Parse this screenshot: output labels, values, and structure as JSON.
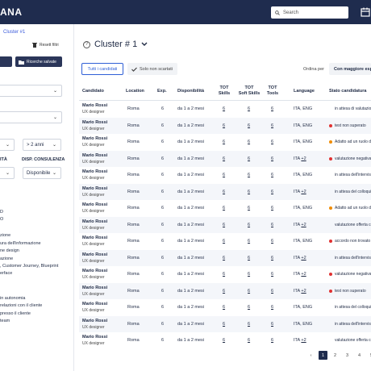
{
  "app": {
    "brand": "ANA"
  },
  "search": {
    "placeholder": "Search"
  },
  "sidebar": {
    "breadcrumb": "Cluster #1",
    "reset": "Resett filtri",
    "btn_save": "Ricerche salvate",
    "dd_years": "> 2 anni",
    "label_dispo": "DISP. CONSULENZA",
    "label_ita": "ITÀ",
    "dd_dispo": "Disponibile",
    "items": [
      "D",
      "O",
      "zione",
      "ura dell'informazione",
      "ne design",
      "azione",
      ", Customer Journey, Blueprint",
      "erface",
      "in autonomia",
      "relazioni con il cliente",
      "presso il cliente",
      "team"
    ]
  },
  "main": {
    "title": "Cluster # 1",
    "tab_all": "Tutti i candidati",
    "tab_not_discarded": "Solo non scartati",
    "order_label": "Ordina per",
    "order_value": "Con maggiore espe"
  },
  "table": {
    "headers": {
      "candidato": "Candidato",
      "location": "Location",
      "exp": "Exp.",
      "dispo": "Disponibilità",
      "tot_skills": "TOT\nSkills",
      "tot_soft": "TOT\nSoft Skills",
      "tot_tools": "TOT\nTools",
      "language": "Language",
      "stato": "Stato candidatura"
    },
    "rows": [
      {
        "name": "Mario Rossi",
        "role": "UX designer",
        "loc": "Roma",
        "exp": "6",
        "dispo": "da 1 a 2 mesi",
        "sk": "6",
        "soft": "6",
        "tools": "6",
        "lang": "ITA, ENG",
        "plus": "",
        "status": "in attesa di valutazione",
        "dot": "none"
      },
      {
        "name": "Mario Rossi",
        "role": "UX designer",
        "loc": "Roma",
        "exp": "6",
        "dispo": "da 1 a 2 mesi",
        "sk": "6",
        "soft": "6",
        "tools": "6",
        "lang": "ITA, ENG",
        "plus": "",
        "status": "test non superato",
        "dot": "#e03131"
      },
      {
        "name": "Mario Rossi",
        "role": "UX designer",
        "loc": "Roma",
        "exp": "6",
        "dispo": "da 1 a 2 mesi",
        "sk": "6",
        "soft": "6",
        "tools": "6",
        "lang": "ITA, ENG",
        "plus": "",
        "status": "Adatto ad un ruolo diff",
        "dot": "#f08c00"
      },
      {
        "name": "Mario Rossi",
        "role": "UX designer",
        "loc": "Roma",
        "exp": "6",
        "dispo": "da 1 a 2 mesi",
        "sk": "6",
        "soft": "6",
        "tools": "6",
        "lang": "ITA",
        "plus": "+2",
        "status": "valutazione negativa C",
        "dot": "#e03131"
      },
      {
        "name": "Mario Rossi",
        "role": "UX designer",
        "loc": "Roma",
        "exp": "6",
        "dispo": "da 1 a 2 mesi",
        "sk": "6",
        "soft": "6",
        "tools": "6",
        "lang": "ITA, ENG",
        "plus": "",
        "status": "in attesa dell'intervist",
        "dot": "none"
      },
      {
        "name": "Mario Rossi",
        "role": "UX designer",
        "loc": "Roma",
        "exp": "6",
        "dispo": "da 1 a 2 mesi",
        "sk": "6",
        "soft": "6",
        "tools": "6",
        "lang": "ITA",
        "plus": "+2",
        "status": "in attesa del colloquio",
        "dot": "none"
      },
      {
        "name": "Mario Rossi",
        "role": "UX designer",
        "loc": "Roma",
        "exp": "6",
        "dispo": "da 1 a 2 mesi",
        "sk": "6",
        "soft": "6",
        "tools": "6",
        "lang": "ITA, ENG",
        "plus": "",
        "status": "Adatto ad un ruolo diff",
        "dot": "#f08c00"
      },
      {
        "name": "Mario Rossi",
        "role": "UX designer",
        "loc": "Roma",
        "exp": "6",
        "dispo": "da 1 a 2 mesi",
        "sk": "6",
        "soft": "6",
        "tools": "6",
        "lang": "ITA",
        "plus": "+2",
        "status": "valutazione offerta con",
        "dot": "none"
      },
      {
        "name": "Mario Rossi",
        "role": "UX designer",
        "loc": "Roma",
        "exp": "6",
        "dispo": "da 1 a 2 mesi",
        "sk": "6",
        "soft": "6",
        "tools": "6",
        "lang": "ITA, ENG",
        "plus": "",
        "status": "accordo non trovato",
        "dot": "#e03131"
      },
      {
        "name": "Mario Rossi",
        "role": "UX designer",
        "loc": "Roma",
        "exp": "6",
        "dispo": "da 1 a 2 mesi",
        "sk": "6",
        "soft": "6",
        "tools": "6",
        "lang": "ITA",
        "plus": "+2",
        "status": "in attesa dell'intervist",
        "dot": "none"
      },
      {
        "name": "Mario Rossi",
        "role": "UX designer",
        "loc": "Roma",
        "exp": "6",
        "dispo": "da 1 a 2 mesi",
        "sk": "6",
        "soft": "6",
        "tools": "6",
        "lang": "ITA",
        "plus": "+2",
        "status": "valutazione negativa C",
        "dot": "#e03131"
      },
      {
        "name": "Mario Rossi",
        "role": "UX designer",
        "loc": "Roma",
        "exp": "6",
        "dispo": "da 1 a 2 mesi",
        "sk": "6",
        "soft": "6",
        "tools": "6",
        "lang": "ITA",
        "plus": "+2",
        "status": "test non superato",
        "dot": "#e03131"
      },
      {
        "name": "Mario Rossi",
        "role": "UX designer",
        "loc": "Roma",
        "exp": "6",
        "dispo": "da 1 a 2 mesi",
        "sk": "6",
        "soft": "6",
        "tools": "6",
        "lang": "ITA, ENG",
        "plus": "",
        "status": "in attesa del colloquio",
        "dot": "none"
      },
      {
        "name": "Mario Rossi",
        "role": "UX designer",
        "loc": "Roma",
        "exp": "6",
        "dispo": "da 1 a 2 mesi",
        "sk": "6",
        "soft": "6",
        "tools": "6",
        "lang": "ITA, ENG",
        "plus": "",
        "status": "in attesa dell'intervist",
        "dot": "none"
      },
      {
        "name": "Mario Rossi",
        "role": "UX designer",
        "loc": "Roma",
        "exp": "6",
        "dispo": "da 1 a 2 mesi",
        "sk": "6",
        "soft": "6",
        "tools": "6",
        "lang": "ITA",
        "plus": "+2",
        "status": "valutazione offerta con",
        "dot": "none"
      }
    ]
  },
  "pager": {
    "pages": [
      "1",
      "2",
      "3",
      "4",
      "5"
    ],
    "active": "1"
  }
}
